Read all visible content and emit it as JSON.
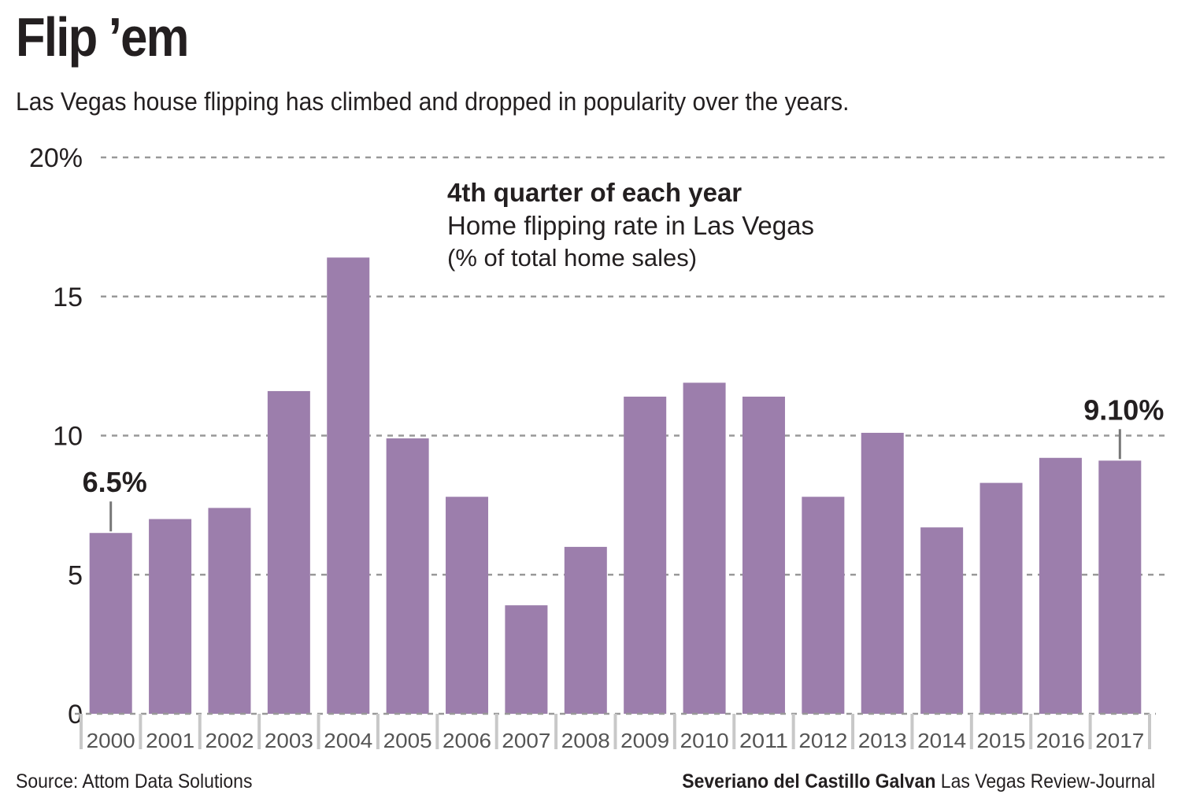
{
  "header": {
    "title": "Flip ’em",
    "subtitle": "Las Vegas house flipping has climbed and dropped in popularity over the years."
  },
  "footer": {
    "source": "Source: Attom Data Solutions",
    "credit_name": "Severiano del Castillo Galvan",
    "credit_org": "Las Vegas Review-Journal"
  },
  "colors": {
    "bar": "#9c7eac",
    "grid": "#999999",
    "text": "#231f20"
  },
  "chart_data": {
    "type": "bar",
    "title": "4th quarter of each year",
    "subtitle": "Home flipping rate in Las Vegas",
    "unit_note": "(% of total home sales)",
    "categories": [
      "2000",
      "2001",
      "2002",
      "2003",
      "2004",
      "2005",
      "2006",
      "2007",
      "2008",
      "2009",
      "2010",
      "2011",
      "2012",
      "2013",
      "2014",
      "2015",
      "2016",
      "2017"
    ],
    "values": [
      6.5,
      7.0,
      7.4,
      11.6,
      16.4,
      9.9,
      7.8,
      3.9,
      6.0,
      11.4,
      11.9,
      11.4,
      7.8,
      10.1,
      6.7,
      8.3,
      9.2,
      9.1
    ],
    "ylim": [
      0,
      20
    ],
    "yticks": [
      0,
      5,
      10,
      15,
      20
    ],
    "ytick_labels": [
      "0",
      "5",
      "10",
      "15",
      "20%"
    ],
    "grid": true,
    "annotations": [
      {
        "category": "2000",
        "label": "6.5%"
      },
      {
        "category": "2017",
        "label": "9.10%"
      }
    ]
  }
}
